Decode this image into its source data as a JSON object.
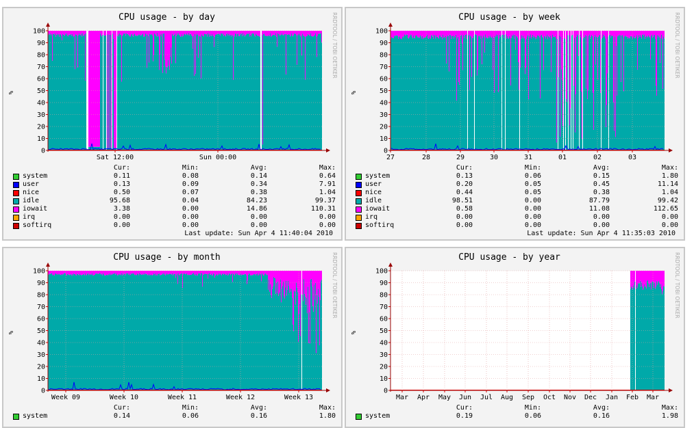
{
  "colors": {
    "system": "#33cc33",
    "user": "#0000ff",
    "nice": "#ff0000",
    "idle": "#00a9a9",
    "iowait": "#ff00ff",
    "irq": "#ffa500",
    "softirq": "#cc0000"
  },
  "chart_data": [
    {
      "type": "area",
      "title": "CPU usage - by day",
      "ylabel": "%",
      "ylim": [
        0,
        100
      ],
      "yticks": [
        0,
        10,
        20,
        30,
        40,
        50,
        60,
        70,
        80,
        90,
        100
      ],
      "xticks": [
        "Sat 12:00",
        "Sun 00:00"
      ],
      "watermark": "RRDTOOL / TOBI OETIKER",
      "series": [
        {
          "name": "system",
          "cur": "0.11",
          "min": "0.08",
          "avg": "0.14",
          "max": "0.64"
        },
        {
          "name": "user",
          "cur": "0.13",
          "min": "0.09",
          "avg": "0.34",
          "max": "7.91"
        },
        {
          "name": "nice",
          "cur": "0.50",
          "min": "0.07",
          "avg": "0.38",
          "max": "1.04"
        },
        {
          "name": "idle",
          "cur": "95.68",
          "min": "0.04",
          "avg": "84.23",
          "max": "99.37"
        },
        {
          "name": "iowait",
          "cur": "3.38",
          "min": "0.00",
          "avg": "14.86",
          "max": "110.31"
        },
        {
          "name": "irq",
          "cur": "0.00",
          "min": "0.00",
          "avg": "0.00",
          "max": "0.00"
        },
        {
          "name": "softirq",
          "cur": "0.00",
          "min": "0.00",
          "avg": "0.00",
          "max": "0.00"
        }
      ],
      "last_update": "Last update: Sun Apr  4 11:40:04 2010"
    },
    {
      "type": "area",
      "title": "CPU usage - by week",
      "ylabel": "%",
      "ylim": [
        0,
        100
      ],
      "yticks": [
        0,
        10,
        20,
        30,
        40,
        50,
        60,
        70,
        80,
        90,
        100
      ],
      "xticks": [
        "27",
        "28",
        "29",
        "30",
        "31",
        "01",
        "02",
        "03"
      ],
      "watermark": "RRDTOOL / TOBI OETIKER",
      "series": [
        {
          "name": "system",
          "cur": "0.13",
          "min": "0.06",
          "avg": "0.15",
          "max": "1.80"
        },
        {
          "name": "user",
          "cur": "0.20",
          "min": "0.05",
          "avg": "0.45",
          "max": "11.14"
        },
        {
          "name": "nice",
          "cur": "0.44",
          "min": "0.05",
          "avg": "0.38",
          "max": "1.04"
        },
        {
          "name": "idle",
          "cur": "98.51",
          "min": "0.00",
          "avg": "87.79",
          "max": "99.42"
        },
        {
          "name": "iowait",
          "cur": "0.58",
          "min": "0.00",
          "avg": "11.08",
          "max": "112.65"
        },
        {
          "name": "irq",
          "cur": "0.00",
          "min": "0.00",
          "avg": "0.00",
          "max": "0.00"
        },
        {
          "name": "softirq",
          "cur": "0.00",
          "min": "0.00",
          "avg": "0.00",
          "max": "0.00"
        }
      ],
      "last_update": "Last update: Sun Apr  4 11:35:03 2010"
    },
    {
      "type": "area",
      "title": "CPU usage - by month",
      "ylabel": "%",
      "ylim": [
        0,
        100
      ],
      "yticks": [
        0,
        10,
        20,
        30,
        40,
        50,
        60,
        70,
        80,
        90,
        100
      ],
      "xticks": [
        "Week 09",
        "Week 10",
        "Week 11",
        "Week 12",
        "Week 13"
      ],
      "watermark": "RRDTOOL / TOBI OETIKER",
      "series": [
        {
          "name": "system",
          "cur": "0.14",
          "min": "0.06",
          "avg": "0.16",
          "max": "1.80"
        }
      ]
    },
    {
      "type": "area",
      "title": "CPU usage - by year",
      "ylabel": "%",
      "ylim": [
        0,
        100
      ],
      "yticks": [
        0,
        10,
        20,
        30,
        40,
        50,
        60,
        70,
        80,
        90,
        100
      ],
      "xticks": [
        "Mar",
        "Apr",
        "May",
        "Jun",
        "Jul",
        "Aug",
        "Sep",
        "Oct",
        "Nov",
        "Dec",
        "Jan",
        "Feb",
        "Mar"
      ],
      "watermark": "RRDTOOL / TOBI OETIKER",
      "series": [
        {
          "name": "system",
          "cur": "0.19",
          "min": "0.06",
          "avg": "0.16",
          "max": "1.98"
        }
      ]
    }
  ],
  "legend_headers": {
    "cur": "Cur:",
    "min": "Min:",
    "avg": "Avg:",
    "max": "Max:"
  }
}
